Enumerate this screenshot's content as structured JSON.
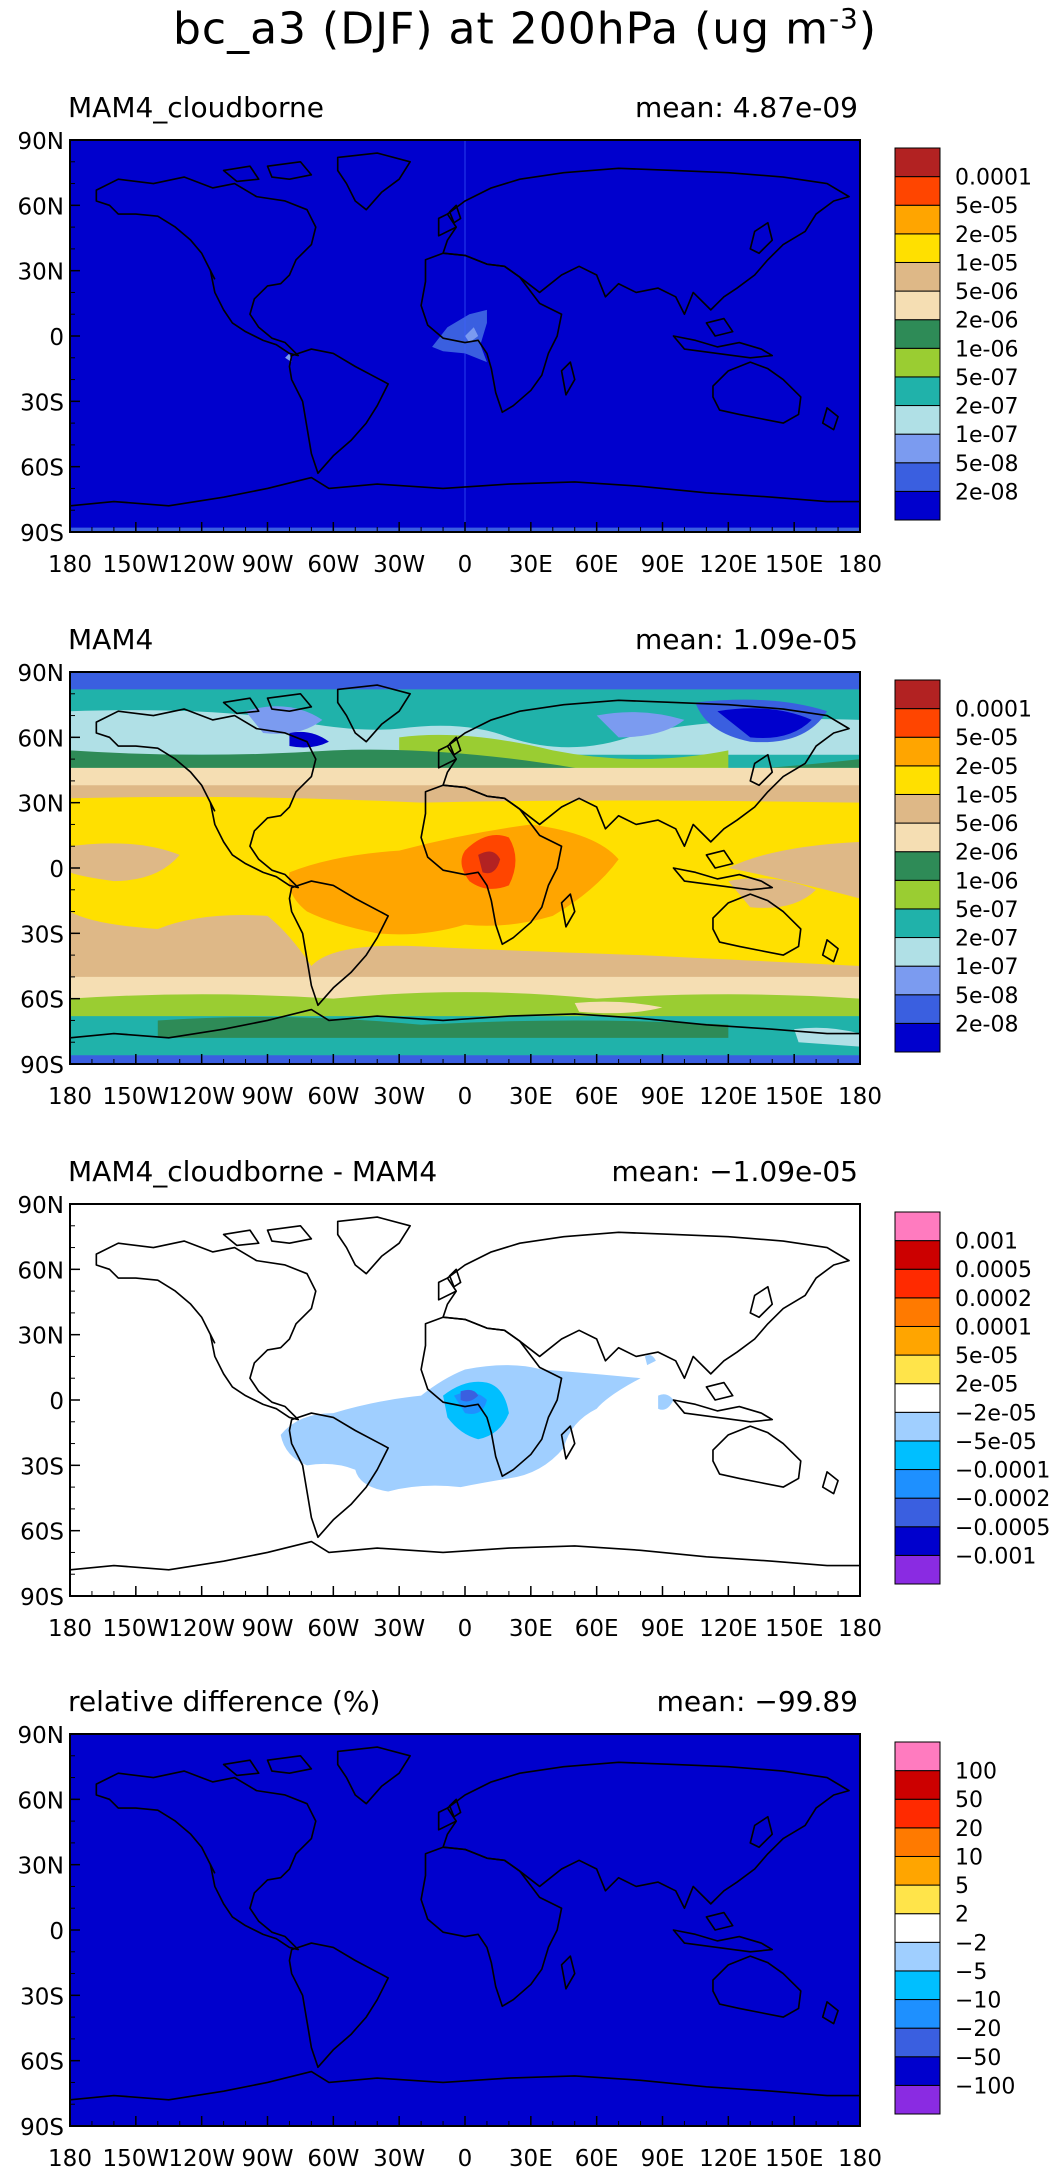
{
  "title": {
    "main": "bc_a3 (DJF) at 200hPa (ug m",
    "exp": "-3",
    "close": ")"
  },
  "lat_labels": [
    "90N",
    "60N",
    "30N",
    "0",
    "30S",
    "60S",
    "90S"
  ],
  "lon_labels": [
    "180",
    "150W",
    "120W",
    "90W",
    "60W",
    "30W",
    "0",
    "30E",
    "60E",
    "90E",
    "120E",
    "150E",
    "180"
  ],
  "colors": {
    "abs": [
      "#0000cd",
      "#3a5fe0",
      "#7b9bf0",
      "#b0e0e6",
      "#20b2aa",
      "#9acd32",
      "#2e8b57",
      "#f5deb3",
      "#deb887",
      "#ffe000",
      "#ffa500",
      "#ff4500",
      "#b22222"
    ],
    "diff": [
      "#8a2be2",
      "#0000cd",
      "#3a5fe0",
      "#1e90ff",
      "#00bfff",
      "#a0cfff",
      "#ffffff",
      "#ffe44a",
      "#ffa500",
      "#ff7a00",
      "#ff2a00",
      "#cc0000",
      "#ff7bbf"
    ],
    "coast": "#000000"
  },
  "panels": [
    {
      "name": "MAM4_cloudborne",
      "mean_label": "mean: 4.87e-09",
      "colorbar": "abs",
      "ticks": [
        "0.0001",
        "5e-05",
        "2e-05",
        "1e-05",
        "5e-06",
        "2e-06",
        "1e-06",
        "5e-07",
        "2e-07",
        "1e-07",
        "5e-08",
        "2e-08"
      ]
    },
    {
      "name": "MAM4",
      "mean_label": "mean: 1.09e-05",
      "colorbar": "abs",
      "ticks": [
        "0.0001",
        "5e-05",
        "2e-05",
        "1e-05",
        "5e-06",
        "2e-06",
        "1e-06",
        "5e-07",
        "2e-07",
        "1e-07",
        "5e-08",
        "2e-08"
      ]
    },
    {
      "name": "MAM4_cloudborne - MAM4",
      "mean_label": "mean: −1.09e-05",
      "colorbar": "diff",
      "ticks": [
        "0.001",
        "0.0005",
        "0.0002",
        "0.0001",
        "5e-05",
        "2e-05",
        "−2e-05",
        "−5e-05",
        "−0.0001",
        "−0.0002",
        "−0.0005",
        "−0.001"
      ]
    },
    {
      "name": "relative difference (%)",
      "mean_label": "mean: −99.89",
      "colorbar": "diff",
      "ticks": [
        "100",
        "50",
        "20",
        "10",
        "5",
        "2",
        "−2",
        "−5",
        "−10",
        "−20",
        "−50",
        "−100"
      ]
    }
  ]
}
